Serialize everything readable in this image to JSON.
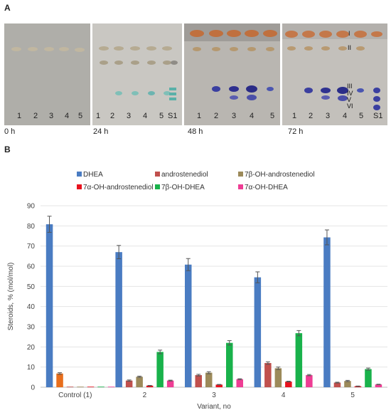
{
  "panel_a": {
    "label": "A",
    "plates": [
      {
        "time": "0 h",
        "lanes": [
          "1",
          "2",
          "3",
          "4",
          "5"
        ]
      },
      {
        "time": "24 h",
        "lanes": [
          "1",
          "2",
          "3",
          "4",
          "5",
          "S1"
        ]
      },
      {
        "time": "48 h",
        "lanes": [
          "1",
          "2",
          "3",
          "4",
          "5"
        ]
      },
      {
        "time": "72 h",
        "lanes": [
          "1",
          "2",
          "3",
          "4",
          "5",
          "S1"
        ]
      }
    ],
    "spot_labels": [
      "I",
      "II",
      "III",
      "IV",
      "V",
      "VI"
    ]
  },
  "panel_b": {
    "label": "B"
  },
  "chart_data": {
    "type": "bar",
    "xlabel": "Variant, no",
    "ylabel": "Steroids, % (mol/mol)",
    "ylim": [
      0,
      90
    ],
    "yticks": [
      0,
      10,
      20,
      30,
      40,
      50,
      60,
      70,
      80,
      90
    ],
    "grid": true,
    "legend_position": "top",
    "categories": [
      "Control (1)",
      "2",
      "3",
      "4",
      "5"
    ],
    "series": [
      {
        "name": "DHEA",
        "color": "#4a7cc2",
        "values": [
          80.8,
          67.0,
          60.8,
          54.5,
          74.3
        ],
        "errors": [
          4.0,
          3.3,
          3.0,
          2.7,
          3.7
        ]
      },
      {
        "name": "androstenediol",
        "color": "#c0504d",
        "values": [
          0,
          3.3,
          6.0,
          12.0,
          2.3
        ],
        "errors": [
          0,
          0.3,
          0.4,
          0.6,
          0.2
        ]
      },
      {
        "name": "7β-OH-androstenediol",
        "color": "#9c8a5a",
        "values": [
          0,
          5.2,
          7.2,
          9.4,
          3.1
        ],
        "errors": [
          0,
          0.3,
          0.5,
          0.6,
          0.3
        ]
      },
      {
        "name": "7α-OH-androstenediol",
        "color": "#e8121e",
        "values": [
          0,
          0.8,
          1.3,
          2.8,
          0.5
        ],
        "errors": [
          0,
          0.1,
          0.1,
          0.2,
          0.1
        ]
      },
      {
        "name": "7β-OH-DHEA",
        "color": "#19b24b",
        "values": [
          0,
          17.5,
          22.0,
          26.8,
          9.0
        ],
        "errors": [
          0,
          0.9,
          1.1,
          1.3,
          0.5
        ]
      },
      {
        "name": "7α-OH-DHEA",
        "color": "#ee3d94",
        "values": [
          0,
          3.3,
          4.0,
          6.0,
          1.4
        ],
        "errors": [
          0,
          0.2,
          0.2,
          0.3,
          0.1
        ]
      },
      {
        "name": "",
        "color": "#e86e1c",
        "values": [
          6.8,
          0,
          0,
          0,
          0
        ],
        "errors": [
          0.4,
          0,
          0,
          0,
          0
        ]
      }
    ]
  }
}
